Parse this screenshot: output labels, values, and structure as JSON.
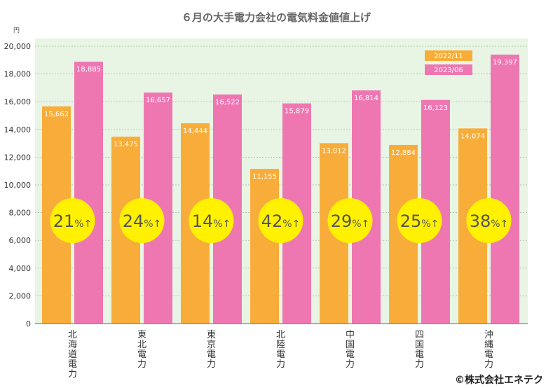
{
  "chart_data": {
    "type": "bar",
    "title": "６月の大手電力会社の電気料金値値上げ",
    "ylabel": "円",
    "ylim": [
      0,
      20000
    ],
    "yticks": [
      "0",
      "2,000",
      "4,000",
      "6,000",
      "8,000",
      "10,000",
      "12,000",
      "14,000",
      "16,000",
      "18,000",
      "20,000"
    ],
    "grid": true,
    "legend_position": "top-right",
    "categories": [
      "北海道電力",
      "東北電力",
      "東京電力",
      "北陸電力",
      "中国電力",
      "四国電力",
      "沖縄電力"
    ],
    "series": [
      {
        "name": "2022/11",
        "color": "#f8ad3a",
        "values": [
          15662,
          13475,
          14444,
          11155,
          13012,
          12884,
          14074
        ],
        "labels": [
          "15,662",
          "13,475",
          "14,444",
          "11,155",
          "13,012",
          "12,884",
          "14,074"
        ]
      },
      {
        "name": "2023/06",
        "color": "#ee77b2",
        "values": [
          18885,
          16657,
          16522,
          15879,
          16814,
          16123,
          19397
        ],
        "labels": [
          "18,885",
          "16,657",
          "16,522",
          "15,879",
          "16,814",
          "16,123",
          "19,397"
        ]
      }
    ],
    "increase_percent": [
      "21",
      "24",
      "14",
      "42",
      "29",
      "25",
      "38"
    ],
    "increase_suffix": "%↑",
    "plot_background": "#e8f5e4",
    "badge_color": "#fff100"
  },
  "copyright": "©株式会社エネテク"
}
